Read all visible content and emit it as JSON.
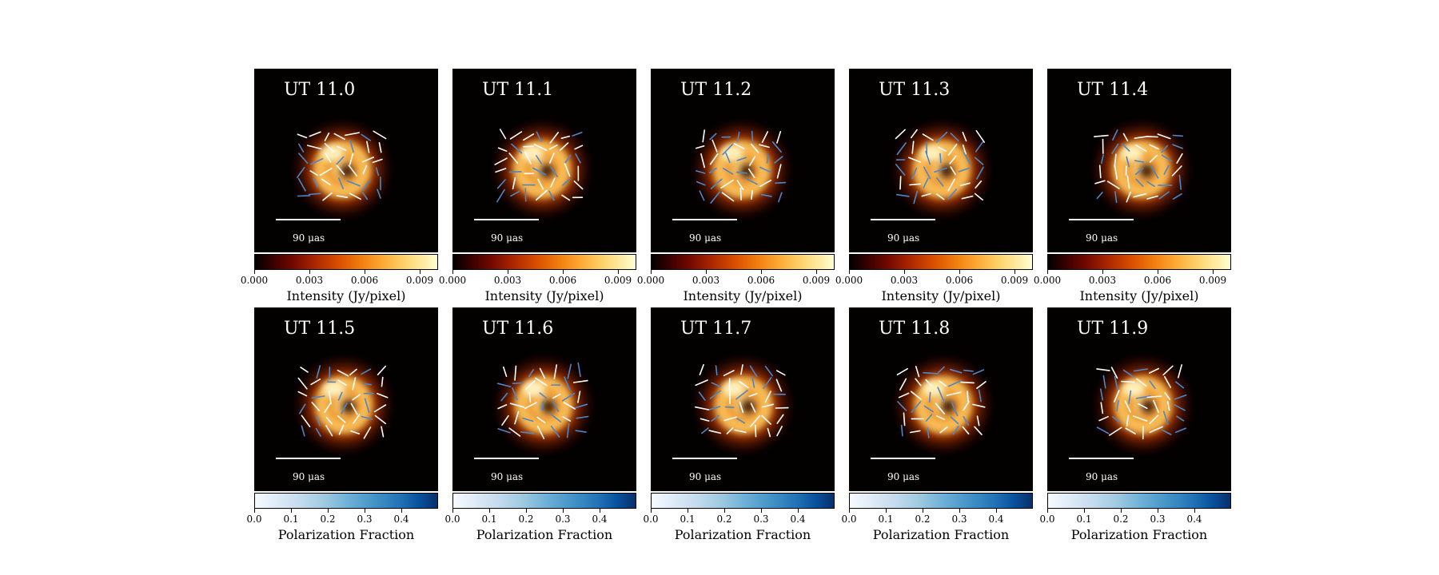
{
  "figure": {
    "rows": [
      {
        "colorbar": {
          "label": "Intensity (Jy/pixel)",
          "ticks": [
            "0.000",
            "0.003",
            "0.006",
            "0.009"
          ],
          "tick_values": [
            0,
            0.003,
            0.006,
            0.009
          ],
          "range": [
            0,
            0.01
          ],
          "colormap": "afmhot"
        },
        "panels": [
          {
            "label": "UT 11.0"
          },
          {
            "label": "UT 11.1"
          },
          {
            "label": "UT 11.2"
          },
          {
            "label": "UT 11.3"
          },
          {
            "label": "UT 11.4"
          }
        ]
      },
      {
        "colorbar": {
          "label": "Polarization Fraction",
          "ticks": [
            "0.0",
            "0.1",
            "0.2",
            "0.3",
            "0.4"
          ],
          "tick_values": [
            0,
            0.1,
            0.2,
            0.3,
            0.4
          ],
          "range": [
            0,
            0.5
          ],
          "colormap": "Blues"
        },
        "panels": [
          {
            "label": "UT 11.5"
          },
          {
            "label": "UT 11.6"
          },
          {
            "label": "UT 11.7"
          },
          {
            "label": "UT 11.8"
          },
          {
            "label": "UT 11.9"
          }
        ]
      }
    ],
    "scale_bar_text": "90 μas",
    "colors": {
      "panel_background": "#030000",
      "evpa_light": "#ffffff",
      "evpa_blue": "#4f86c6"
    }
  }
}
